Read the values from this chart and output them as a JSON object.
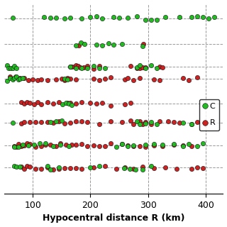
{
  "xlabel": "Hypocentral distance R (km)",
  "xlim": [
    50,
    430
  ],
  "ylim": [
    2.5,
    10.5
  ],
  "xticks": [
    100,
    200,
    300,
    400
  ],
  "green_color": "#22bb22",
  "red_color": "#cc2222",
  "marker_size": 4.5,
  "grid_color": "#999999",
  "background_color": "#ffffff",
  "rows": [
    {
      "y": 9.9,
      "green": [
        65,
        120,
        130,
        140,
        155,
        165,
        185,
        200,
        210,
        220,
        240,
        250,
        265,
        280,
        295,
        305,
        315,
        330,
        355,
        375,
        385,
        395,
        405,
        415
      ],
      "red": []
    },
    {
      "y": 8.8,
      "green": [
        175,
        183,
        190,
        210,
        220,
        232,
        240,
        255,
        290
      ],
      "red": [
        180,
        292
      ]
    },
    {
      "y": 7.85,
      "green": [
        55,
        58,
        62,
        65,
        68,
        72,
        165,
        175,
        185,
        195,
        205,
        215,
        225,
        280,
        285,
        295,
        305,
        315
      ],
      "red": [
        165,
        168,
        172,
        175,
        178,
        182,
        188,
        195,
        205,
        215,
        270,
        280,
        285,
        290,
        295,
        320,
        325
      ]
    },
    {
      "y": 7.35,
      "green": [
        55,
        60,
        65,
        68,
        72,
        75,
        78,
        82,
        155,
        160
      ],
      "red": [
        60,
        65,
        70,
        78,
        85,
        92,
        100,
        108,
        115,
        125,
        140,
        150,
        155,
        160,
        165,
        175,
        205,
        215,
        225,
        235,
        260,
        265,
        275,
        285,
        310,
        320,
        360,
        370,
        385
      ]
    },
    {
      "y": 6.3,
      "green": [
        152,
        158,
        163,
        168
      ],
      "red": [
        80,
        85,
        90,
        95,
        102,
        108,
        115,
        125,
        135,
        145,
        160,
        165,
        175,
        185,
        200,
        210,
        220,
        235,
        260,
        270
      ]
    },
    {
      "y": 5.5,
      "green": [
        65,
        130,
        140,
        150,
        280,
        285,
        295,
        305,
        315,
        360,
        375
      ],
      "red": [
        80,
        85,
        95,
        105,
        115,
        125,
        135,
        145,
        155,
        165,
        175,
        185,
        195,
        215,
        235,
        255,
        270,
        275,
        285,
        290,
        295,
        305,
        320,
        335,
        345,
        355,
        375,
        385
      ]
    },
    {
      "y": 4.55,
      "green": [
        68,
        75,
        82,
        92,
        102,
        112,
        122,
        135,
        148,
        162,
        245,
        255,
        265,
        275,
        295,
        310,
        325,
        345,
        360,
        370,
        385,
        395
      ],
      "red": [
        68,
        72,
        75,
        80,
        85,
        90,
        95,
        105,
        115,
        122,
        130,
        140,
        148,
        158,
        168,
        175,
        185,
        195,
        205,
        215,
        225,
        235,
        255,
        265,
        275,
        285,
        295,
        310,
        325,
        345,
        360,
        375
      ]
    },
    {
      "y": 3.6,
      "green": [
        68,
        72,
        78,
        125,
        130,
        145,
        200,
        215,
        258,
        268,
        278,
        290,
        305
      ],
      "red": [
        80,
        85,
        90,
        95,
        105,
        115,
        125,
        135,
        145,
        155,
        165,
        175,
        185,
        205,
        225,
        245,
        260,
        275,
        290,
        310,
        330,
        350,
        375,
        385,
        395
      ]
    }
  ],
  "hlines": [
    9.9,
    8.8,
    7.85,
    7.35,
    6.3,
    5.5,
    4.55,
    3.6
  ],
  "vlines": [
    100,
    200,
    300,
    400
  ]
}
